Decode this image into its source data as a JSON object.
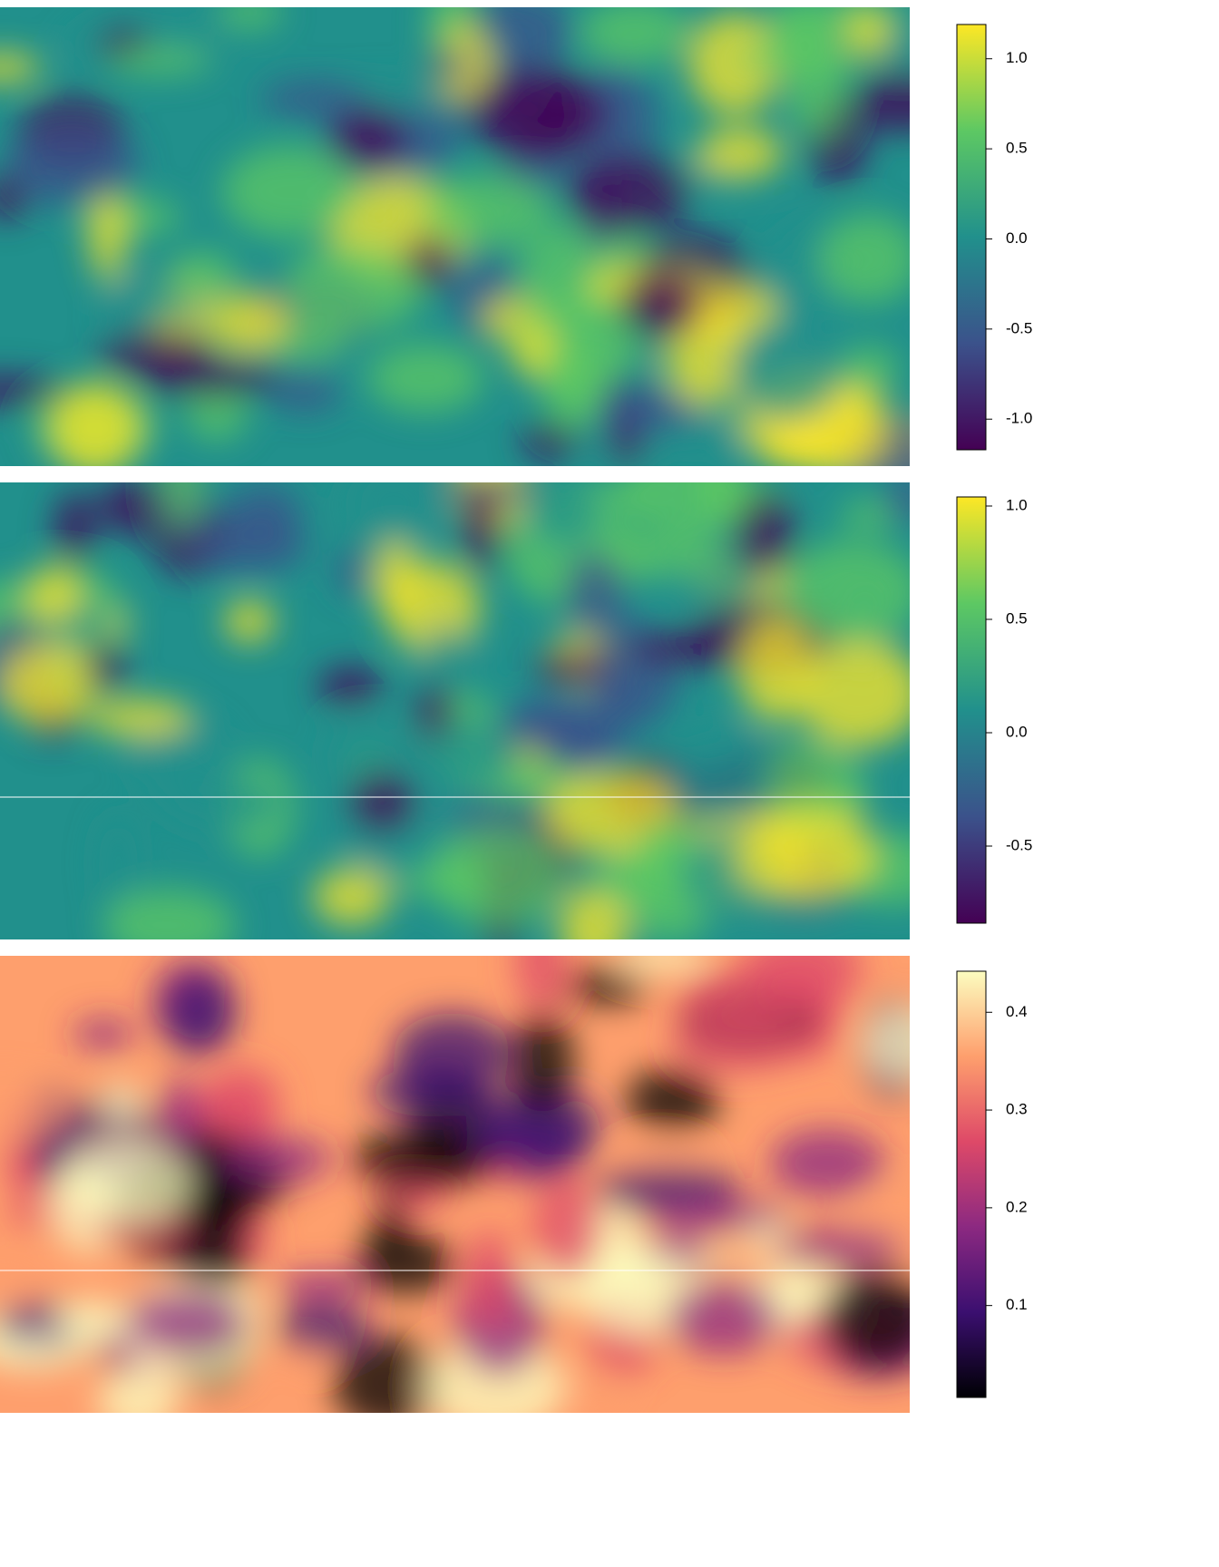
{
  "chart_data": [
    {
      "type": "heatmap",
      "colorbar": {
        "lim": [
          -1.17,
          1.19
        ],
        "ticks": [
          {
            "value": 1,
            "label": "1.0"
          },
          0.5,
          {
            "value": 0,
            "label": "0.0"
          },
          -0.5,
          {
            "value": -1,
            "label": "-1.0"
          }
        ],
        "colors": [
          "#440154",
          "#3b528b",
          "#21908c",
          "#5dc863",
          "#fde725"
        ]
      }
    },
    {
      "type": "heatmap",
      "colorbar": {
        "lim": [
          -0.84,
          1.04
        ],
        "ticks": [
          {
            "value": 1,
            "label": "1.0"
          },
          0.5,
          {
            "value": 0,
            "label": "0.0"
          },
          -0.5
        ],
        "colors": [
          "#440154",
          "#3b528b",
          "#21908c",
          "#5dc863",
          "#fde725"
        ]
      }
    },
    {
      "type": "heatmap",
      "colorbar": {
        "lim": [
          0.006,
          0.442
        ],
        "ticks": [
          0.4,
          0.3,
          0.2,
          0.1
        ],
        "colors": [
          "#000004",
          "#3b0f70",
          "#8c2981",
          "#de4968",
          "#fe9f6d",
          "#fcfdbf"
        ]
      }
    }
  ]
}
